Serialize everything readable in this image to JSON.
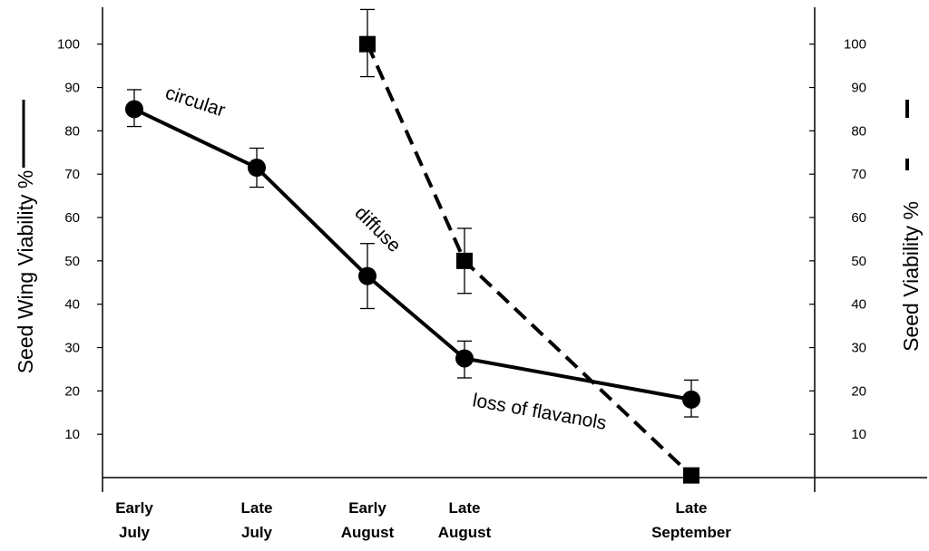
{
  "chart_data": {
    "type": "line",
    "categories": [
      "Early July",
      "Late July",
      "Early August",
      "Late August",
      "Late September"
    ],
    "category_lines": [
      [
        "Early",
        "July"
      ],
      [
        "Late",
        "July"
      ],
      [
        "Early",
        "August"
      ],
      [
        "Late",
        "August"
      ],
      [
        "Late",
        "September"
      ]
    ],
    "y_left": {
      "label": "Seed Wing Viability %",
      "ylim": [
        0,
        110
      ],
      "ticks": [
        10,
        20,
        30,
        40,
        50,
        60,
        70,
        80,
        90,
        100
      ]
    },
    "y_right": {
      "label": "Seed Viability %",
      "ylim": [
        0,
        110
      ],
      "ticks": [
        10,
        20,
        30,
        40,
        50,
        60,
        70,
        80,
        90,
        100
      ]
    },
    "series": [
      {
        "axis": "left",
        "style": "solid",
        "marker": "circle",
        "points": [
          {
            "x": "Early July",
            "y": 85,
            "err_low": 81,
            "err_high": 89.5
          },
          {
            "x": "Late July",
            "y": 71.5,
            "err_low": 67,
            "err_high": 76
          },
          {
            "x": "Early August",
            "y": 46.5,
            "err_low": 39,
            "err_high": 54
          },
          {
            "x": "Late August",
            "y": 27.5,
            "err_low": 23,
            "err_high": 31.5
          },
          {
            "x": "Late September",
            "y": 18,
            "err_low": 14,
            "err_high": 22.5
          }
        ]
      },
      {
        "axis": "right",
        "style": "dashed",
        "marker": "square",
        "points": [
          {
            "x": "Early August",
            "y": 100,
            "err_low": 92.5,
            "err_high": 108
          },
          {
            "x": "Late August",
            "y": 50,
            "err_low": 42.5,
            "err_high": 57.5
          },
          {
            "x": "Late September",
            "y": 0.5,
            "err_low": null,
            "err_high": null
          }
        ]
      }
    ],
    "annotations": [
      {
        "text": "circular"
      },
      {
        "text": "diffuse"
      },
      {
        "text": "loss of flavanols"
      }
    ],
    "legend": "line-style swatch beside each axis title",
    "grid": false
  }
}
